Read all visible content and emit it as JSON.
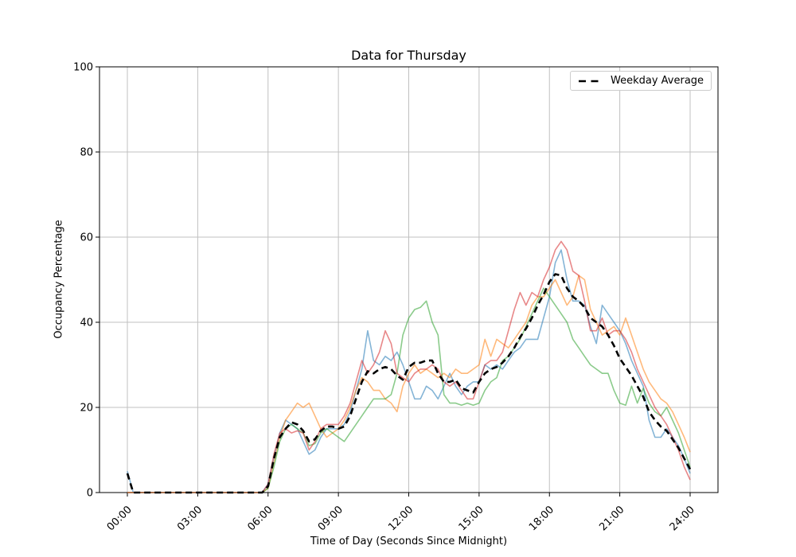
{
  "chart_data": {
    "type": "line",
    "title": "Data for Thursday",
    "xlabel": "Time of Day (Seconds Since Midnight)",
    "ylabel": "Occupancy Percentage",
    "ylim": [
      0,
      100
    ],
    "y_ticks": [
      0,
      20,
      40,
      60,
      80,
      100
    ],
    "x_tick_hours": [
      0,
      3,
      6,
      9,
      12,
      15,
      18,
      21,
      24
    ],
    "x_tick_labels": [
      "00:00",
      "03:00",
      "06:00",
      "09:00",
      "12:00",
      "15:00",
      "18:00",
      "21:00",
      "24:00"
    ],
    "grid": true,
    "legend": {
      "position": "upper right",
      "entries": [
        "Weekday Average"
      ]
    },
    "x_start_hours": 0,
    "x_step_hours": 0.25,
    "series": [
      {
        "name": "day line blue",
        "color": "#1f77b4",
        "opacity": 0.55,
        "style": "solid",
        "linewidth": 1.6,
        "values": [
          5,
          0,
          0,
          0,
          0,
          0,
          0,
          0,
          0,
          0,
          0,
          0,
          0,
          0,
          0,
          0,
          0,
          0,
          0,
          0,
          0,
          0,
          0,
          0,
          2,
          8,
          14,
          17,
          16,
          15,
          12,
          9,
          10,
          13,
          15,
          15,
          15,
          16,
          19,
          24,
          29,
          38,
          31,
          30,
          32,
          31,
          33,
          30,
          26,
          22,
          22,
          25,
          24,
          22,
          25,
          28,
          25,
          23,
          25,
          26,
          26,
          30,
          29,
          30,
          29,
          31,
          33,
          34,
          36,
          36,
          36,
          41,
          46,
          54,
          57,
          50,
          45,
          45,
          44,
          39,
          35,
          44,
          42,
          40,
          38,
          35,
          31,
          28,
          25,
          17,
          13,
          13,
          15,
          13,
          11,
          8,
          4.5
        ]
      },
      {
        "name": "day line orange",
        "color": "#ff7f0e",
        "opacity": 0.55,
        "style": "solid",
        "linewidth": 1.6,
        "values": [
          0,
          0,
          0,
          0,
          0,
          0,
          0,
          0,
          0,
          0,
          0,
          0,
          0,
          0,
          0,
          0,
          0,
          0,
          0,
          0,
          0,
          0,
          0,
          0,
          1,
          7,
          13,
          17,
          19,
          21,
          20,
          21,
          18,
          15,
          13,
          14,
          15,
          17,
          20,
          24,
          27,
          26,
          24,
          24,
          22,
          21,
          19,
          25,
          28,
          30,
          28,
          29,
          28,
          27,
          28,
          27,
          29,
          28,
          28,
          29,
          30,
          36,
          32,
          36,
          35,
          34,
          36,
          38,
          40,
          44,
          46,
          46,
          48,
          50,
          47,
          44,
          46,
          51,
          50,
          43,
          40,
          37,
          38,
          39,
          37,
          41,
          37,
          33,
          29,
          26,
          24,
          22,
          21,
          19,
          16,
          13,
          9.5
        ]
      },
      {
        "name": "day line green",
        "color": "#2ca02c",
        "opacity": 0.55,
        "style": "solid",
        "linewidth": 1.6,
        "values": [
          0,
          0,
          0,
          0,
          0,
          0,
          0,
          0,
          0,
          0,
          0,
          0,
          0,
          0,
          0,
          0,
          0,
          0,
          0,
          0,
          0,
          0,
          0,
          0,
          1,
          6,
          12,
          15,
          16,
          15,
          14,
          11,
          11.5,
          14,
          15,
          14,
          13,
          12,
          14,
          16,
          18,
          20,
          22,
          22,
          22,
          23,
          28,
          37,
          41,
          43,
          43.5,
          45,
          40,
          37,
          23,
          21,
          21,
          20.5,
          21,
          20.5,
          21,
          24,
          26,
          27,
          31,
          32,
          34,
          36,
          39,
          42,
          45,
          48,
          46,
          44,
          42,
          40,
          36,
          34,
          32,
          30,
          29,
          28,
          28,
          24,
          21,
          20.5,
          25,
          21,
          24.5,
          21,
          19,
          18,
          20,
          17,
          14,
          10,
          6
        ]
      },
      {
        "name": "day line red",
        "color": "#d62728",
        "opacity": 0.55,
        "style": "solid",
        "linewidth": 1.6,
        "values": [
          0,
          0,
          0,
          0,
          0,
          0,
          0,
          0,
          0,
          0,
          0,
          0,
          0,
          0,
          0,
          0,
          0,
          0,
          0,
          0,
          0,
          0,
          0,
          0,
          2,
          9,
          14,
          15,
          14,
          14.5,
          14,
          10,
          12,
          15,
          16,
          16,
          16,
          18,
          21,
          26,
          31,
          28,
          30,
          33,
          38,
          35,
          28,
          27,
          26,
          28,
          29,
          29,
          30,
          29,
          26,
          25,
          26,
          24,
          22,
          22,
          26,
          30,
          31,
          31,
          33,
          38,
          43,
          47,
          44,
          47,
          46,
          50,
          53,
          57,
          59,
          57,
          52,
          51,
          45,
          38,
          38,
          41,
          37,
          38,
          38,
          36,
          33,
          29,
          26,
          23,
          20,
          18,
          16,
          13,
          10,
          6,
          3
        ]
      },
      {
        "name": "Weekday Average",
        "color": "#000000",
        "opacity": 1,
        "style": "dashed",
        "linewidth": 2.6,
        "values": [
          4.5,
          0,
          0,
          0,
          0,
          0,
          0,
          0,
          0,
          0,
          0,
          0,
          0,
          0,
          0,
          0,
          0,
          0,
          0,
          0,
          0,
          0,
          0,
          0,
          1.5,
          8,
          13,
          15,
          16.5,
          16,
          14.5,
          12,
          12.5,
          14.5,
          15.5,
          15.5,
          15,
          15.5,
          18,
          22,
          26,
          28.5,
          28,
          29,
          29.5,
          29,
          27.5,
          26.5,
          29.5,
          30.5,
          30.5,
          31,
          31,
          28,
          26,
          26,
          26.5,
          24.5,
          24,
          23.5,
          26,
          28,
          29,
          29.5,
          30.5,
          32,
          34,
          36.5,
          38.5,
          41,
          44,
          46.5,
          49.5,
          51.3,
          51,
          48,
          46,
          45,
          43.5,
          41,
          40,
          39,
          37,
          34.5,
          31.5,
          29.5,
          27.5,
          25,
          22.5,
          19,
          17,
          15.5,
          14.5,
          12.5,
          10.5,
          8,
          5.5
        ]
      }
    ],
    "style": {
      "grid_color": "#c0c0c0",
      "spine_color": "#000000",
      "background": "#ffffff"
    }
  }
}
